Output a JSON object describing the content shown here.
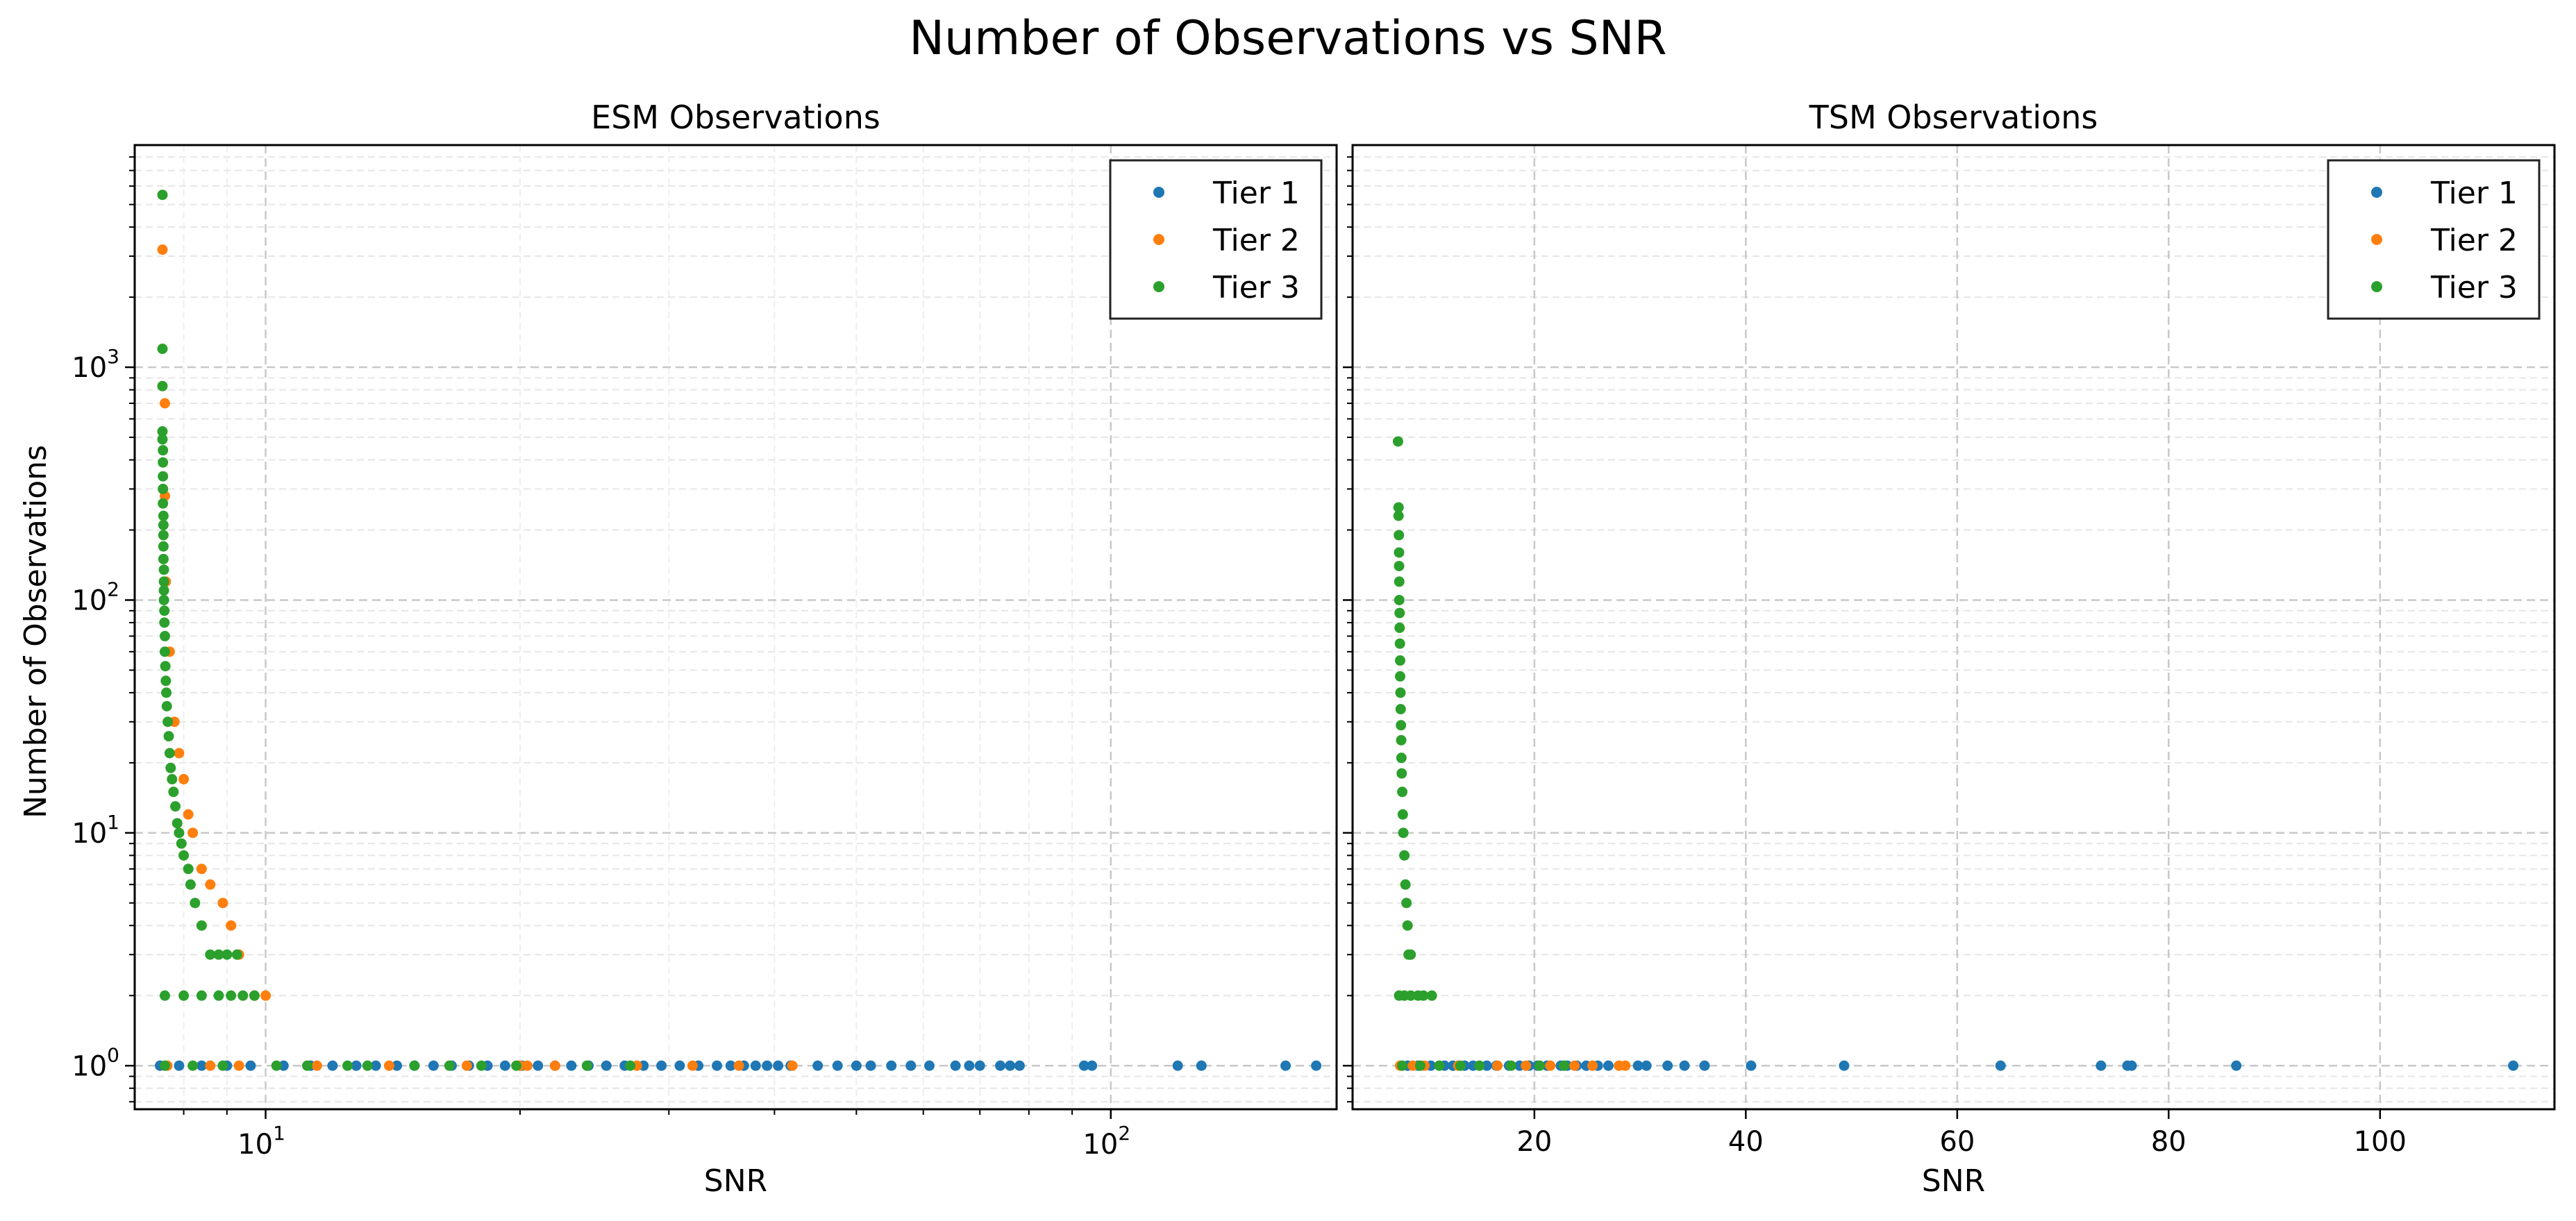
{
  "figure": {
    "title": "Number of Observations vs SNR",
    "ylabel": "Number of Observations"
  },
  "colors": {
    "Tier 1": "#1f77b4",
    "Tier 2": "#ff7f0e",
    "Tier 3": "#2ca02c"
  },
  "chart_data": [
    {
      "type": "scatter",
      "title": "ESM Observations",
      "xlabel": "SNR",
      "ylabel": "Number of Observations",
      "xscale": "log",
      "yscale": "log",
      "xlim": [
        7.0,
        185
      ],
      "ylim": [
        0.65,
        9000
      ],
      "xticks": [
        {
          "value": 10,
          "base": "10",
          "exp": "1"
        },
        {
          "value": 100,
          "base": "10",
          "exp": "2"
        }
      ],
      "yticks": [
        {
          "value": 1,
          "base": "10",
          "exp": "0"
        },
        {
          "value": 10,
          "base": "10",
          "exp": "1"
        },
        {
          "value": 100,
          "base": "10",
          "exp": "2"
        },
        {
          "value": 1000,
          "base": "10",
          "exp": "3"
        }
      ],
      "grid": true,
      "legend_position": "top-right",
      "legend": [
        "Tier 1",
        "Tier 2",
        "Tier 3"
      ],
      "series": [
        {
          "name": "Tier 1",
          "points": [
            [
              7.5,
              1
            ],
            [
              7.9,
              1
            ],
            [
              8.4,
              1
            ],
            [
              9.0,
              1
            ],
            [
              9.6,
              1
            ],
            [
              10.5,
              1
            ],
            [
              11.3,
              1
            ],
            [
              12.0,
              1
            ],
            [
              12.8,
              1
            ],
            [
              13.5,
              1
            ],
            [
              14.3,
              1
            ],
            [
              15.0,
              1
            ],
            [
              15.8,
              1
            ],
            [
              16.6,
              1
            ],
            [
              17.4,
              1
            ],
            [
              18.3,
              1
            ],
            [
              19.2,
              1
            ],
            [
              20.1,
              1
            ],
            [
              21.0,
              1
            ],
            [
              22.0,
              1
            ],
            [
              23.0,
              1
            ],
            [
              24.1,
              1
            ],
            [
              25.3,
              1
            ],
            [
              26.6,
              1
            ],
            [
              28.0,
              1
            ],
            [
              29.4,
              1
            ],
            [
              30.9,
              1
            ],
            [
              32.5,
              1
            ],
            [
              34.2,
              1
            ],
            [
              35.5,
              1
            ],
            [
              36.8,
              1
            ],
            [
              38.0,
              1
            ],
            [
              39.2,
              1
            ],
            [
              40.4,
              1
            ],
            [
              41.8,
              1
            ],
            [
              45.0,
              1
            ],
            [
              47.5,
              1
            ],
            [
              50.0,
              1
            ],
            [
              52.0,
              1
            ],
            [
              55.0,
              1
            ],
            [
              58.0,
              1
            ],
            [
              61.0,
              1
            ],
            [
              65.5,
              1
            ],
            [
              68.0,
              1
            ],
            [
              70.0,
              1
            ],
            [
              74.0,
              1
            ],
            [
              76.0,
              1
            ],
            [
              78.0,
              1
            ],
            [
              93.0,
              1
            ],
            [
              95.0,
              1
            ],
            [
              120.0,
              1
            ],
            [
              128.0,
              1
            ],
            [
              161.0,
              1
            ],
            [
              175.0,
              1
            ]
          ]
        },
        {
          "name": "Tier 2",
          "points": [
            [
              7.55,
              3200
            ],
            [
              7.6,
              700
            ],
            [
              7.6,
              280
            ],
            [
              7.62,
              120
            ],
            [
              7.7,
              60
            ],
            [
              7.8,
              30
            ],
            [
              7.9,
              22
            ],
            [
              8.0,
              17
            ],
            [
              8.1,
              12
            ],
            [
              8.2,
              10
            ],
            [
              8.4,
              7
            ],
            [
              8.6,
              6
            ],
            [
              8.9,
              5
            ],
            [
              9.1,
              4
            ],
            [
              9.3,
              3
            ],
            [
              9.7,
              2
            ],
            [
              10.0,
              2
            ],
            [
              7.65,
              1
            ],
            [
              8.6,
              1
            ],
            [
              9.3,
              1
            ],
            [
              11.5,
              1
            ],
            [
              14.0,
              1
            ],
            [
              17.3,
              1
            ],
            [
              20.0,
              1
            ],
            [
              20.4,
              1
            ],
            [
              22.0,
              1
            ],
            [
              27.5,
              1
            ],
            [
              32.0,
              1
            ],
            [
              36.3,
              1
            ],
            [
              42.0,
              1
            ]
          ]
        },
        {
          "name": "Tier 3",
          "points": [
            [
              7.55,
              5500
            ],
            [
              7.55,
              1200
            ],
            [
              7.55,
              830
            ],
            [
              7.55,
              530
            ],
            [
              7.55,
              490
            ],
            [
              7.56,
              440
            ],
            [
              7.56,
              390
            ],
            [
              7.56,
              340
            ],
            [
              7.56,
              300
            ],
            [
              7.56,
              260
            ],
            [
              7.57,
              230
            ],
            [
              7.57,
              210
            ],
            [
              7.57,
              190
            ],
            [
              7.57,
              170
            ],
            [
              7.57,
              150
            ],
            [
              7.58,
              135
            ],
            [
              7.58,
              120
            ],
            [
              7.58,
              110
            ],
            [
              7.58,
              100
            ],
            [
              7.59,
              90
            ],
            [
              7.59,
              80
            ],
            [
              7.6,
              70
            ],
            [
              7.6,
              60
            ],
            [
              7.61,
              52
            ],
            [
              7.62,
              45
            ],
            [
              7.63,
              40
            ],
            [
              7.64,
              35
            ],
            [
              7.66,
              30
            ],
            [
              7.68,
              26
            ],
            [
              7.7,
              22
            ],
            [
              7.72,
              19
            ],
            [
              7.75,
              17
            ],
            [
              7.78,
              15
            ],
            [
              7.82,
              13
            ],
            [
              7.86,
              11
            ],
            [
              7.9,
              10
            ],
            [
              7.95,
              9
            ],
            [
              8.0,
              8
            ],
            [
              8.1,
              7
            ],
            [
              8.15,
              6
            ],
            [
              8.25,
              5
            ],
            [
              8.4,
              4
            ],
            [
              8.6,
              3
            ],
            [
              8.8,
              3
            ],
            [
              9.0,
              3
            ],
            [
              9.25,
              3
            ],
            [
              7.6,
              2
            ],
            [
              8.0,
              2
            ],
            [
              8.4,
              2
            ],
            [
              8.8,
              2
            ],
            [
              9.1,
              2
            ],
            [
              9.4,
              2
            ],
            [
              9.7,
              2
            ],
            [
              7.6,
              1
            ],
            [
              8.2,
              1
            ],
            [
              8.9,
              1
            ],
            [
              10.3,
              1
            ],
            [
              11.2,
              1
            ],
            [
              12.5,
              1
            ],
            [
              13.2,
              1
            ],
            [
              15.0,
              1
            ],
            [
              16.5,
              1
            ],
            [
              18.0,
              1
            ],
            [
              19.8,
              1
            ],
            [
              24.0,
              1
            ],
            [
              27.0,
              1
            ]
          ]
        }
      ]
    },
    {
      "type": "scatter",
      "title": "TSM Observations",
      "xlabel": "SNR",
      "xscale": "linear",
      "yscale": "log",
      "xlim": [
        2.8,
        116.5
      ],
      "ylim": [
        0.65,
        9000
      ],
      "xticks": [
        20,
        40,
        60,
        80,
        100
      ],
      "grid": true,
      "legend_position": "top-right",
      "legend": [
        "Tier 1",
        "Tier 2",
        "Tier 3"
      ],
      "series": [
        {
          "name": "Tier 1",
          "points": [
            [
              8.0,
              1
            ],
            [
              9.0,
              1
            ],
            [
              10.2,
              1
            ],
            [
              11.5,
              1
            ],
            [
              12.3,
              1
            ],
            [
              13.4,
              1
            ],
            [
              14.2,
              1
            ],
            [
              15.5,
              1
            ],
            [
              16.4,
              1
            ],
            [
              17.6,
              1
            ],
            [
              18.6,
              1
            ],
            [
              19.5,
              1
            ],
            [
              20.3,
              1
            ],
            [
              21.2,
              1
            ],
            [
              22.5,
              1
            ],
            [
              23.1,
              1
            ],
            [
              24.0,
              1
            ],
            [
              24.9,
              1
            ],
            [
              26.0,
              1
            ],
            [
              27.0,
              1
            ],
            [
              29.8,
              1
            ],
            [
              30.6,
              1
            ],
            [
              32.6,
              1
            ],
            [
              34.2,
              1
            ],
            [
              36.1,
              1
            ],
            [
              40.5,
              1
            ],
            [
              49.3,
              1
            ],
            [
              64.1,
              1
            ],
            [
              73.6,
              1
            ],
            [
              76.1,
              1
            ],
            [
              76.5,
              1
            ],
            [
              86.4,
              1
            ],
            [
              112.6,
              1
            ]
          ]
        },
        {
          "name": "Tier 2",
          "points": [
            [
              7.3,
              1
            ],
            [
              8.5,
              1
            ],
            [
              9.6,
              1
            ],
            [
              12.8,
              1
            ],
            [
              16.5,
              1
            ],
            [
              19.2,
              1
            ],
            [
              21.5,
              1
            ],
            [
              23.8,
              1
            ],
            [
              25.5,
              1
            ],
            [
              28.0,
              1
            ],
            [
              28.6,
              1
            ]
          ]
        },
        {
          "name": "Tier 3",
          "points": [
            [
              7.1,
              480
            ],
            [
              7.15,
              250
            ],
            [
              7.15,
              230
            ],
            [
              7.18,
              190
            ],
            [
              7.2,
              160
            ],
            [
              7.2,
              140
            ],
            [
              7.22,
              120
            ],
            [
              7.22,
              100
            ],
            [
              7.25,
              88
            ],
            [
              7.25,
              76
            ],
            [
              7.28,
              65
            ],
            [
              7.3,
              55
            ],
            [
              7.3,
              47
            ],
            [
              7.33,
              40
            ],
            [
              7.35,
              34
            ],
            [
              7.38,
              29
            ],
            [
              7.4,
              25
            ],
            [
              7.42,
              21
            ],
            [
              7.45,
              18
            ],
            [
              7.5,
              15
            ],
            [
              7.55,
              12
            ],
            [
              7.6,
              10
            ],
            [
              7.7,
              8
            ],
            [
              7.8,
              6
            ],
            [
              7.9,
              5
            ],
            [
              8.0,
              4
            ],
            [
              8.1,
              3
            ],
            [
              8.3,
              3
            ],
            [
              7.2,
              2
            ],
            [
              7.7,
              2
            ],
            [
              8.3,
              2
            ],
            [
              9.0,
              2
            ],
            [
              9.5,
              2
            ],
            [
              10.3,
              2
            ],
            [
              7.5,
              1
            ],
            [
              9.2,
              1
            ],
            [
              11.0,
              1
            ],
            [
              13.0,
              1
            ],
            [
              14.8,
              1
            ],
            [
              17.8,
              1
            ],
            [
              20.5,
              1
            ],
            [
              22.8,
              1
            ]
          ]
        }
      ]
    }
  ]
}
